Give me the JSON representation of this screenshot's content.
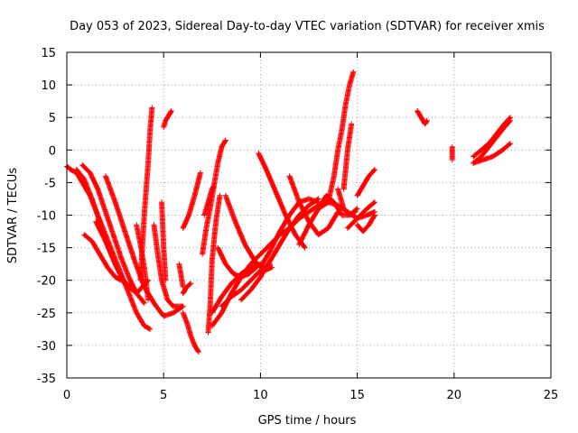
{
  "chart_data": {
    "type": "scatter",
    "title": "Day 053 of 2023, Sidereal Day-to-day VTEC variation (SDTVAR) for receiver xmis",
    "xlabel": "GPS time / hours",
    "ylabel": "SDTVAR / TECUs",
    "xlim": [
      0,
      25
    ],
    "ylim": [
      -35,
      15
    ],
    "xticks": [
      "0",
      "5",
      "10",
      "15",
      "20",
      "25"
    ],
    "yticks": [
      "15",
      "10",
      "5",
      "0",
      "-5",
      "-10",
      "-15",
      "-20",
      "-25",
      "-30",
      "-35"
    ],
    "grid": true,
    "marker": "+",
    "colors": {
      "points": "#ff0000",
      "grid": "#a0a0a0",
      "axis": "#000000"
    },
    "series": [
      {
        "x": [
          0.0,
          0.2,
          0.5,
          0.8,
          1.2,
          1.6,
          2.0,
          2.4,
          2.8,
          3.2,
          3.6,
          4.0,
          4.3
        ],
        "y": [
          -2.5,
          -3.0,
          -3.5,
          -5.0,
          -7.0,
          -10.0,
          -13.0,
          -16.0,
          -19.0,
          -22.0,
          -25.0,
          -27.0,
          -27.5
        ]
      },
      {
        "x": [
          0.5,
          0.9,
          1.3,
          1.7,
          2.1,
          2.5,
          2.9,
          3.3
        ],
        "y": [
          -3.0,
          -4.5,
          -7.5,
          -11.0,
          -14.5,
          -17.5,
          -20.0,
          -21.0
        ]
      },
      {
        "x": [
          0.8,
          1.2,
          1.6,
          2.0,
          2.4,
          2.8,
          3.2,
          3.6,
          4.0
        ],
        "y": [
          -2.3,
          -3.5,
          -6.0,
          -9.5,
          -13.0,
          -16.5,
          -19.5,
          -22.0,
          -23.5
        ]
      },
      {
        "x": [
          0.9,
          1.3,
          1.7,
          2.1,
          2.5,
          2.8
        ],
        "y": [
          -13.0,
          -14.0,
          -16.0,
          -18.0,
          -19.5,
          -20.0
        ]
      },
      {
        "x": [
          2.0,
          2.5,
          3.0,
          3.5,
          4.0,
          4.5,
          5.0,
          5.5,
          6.0
        ],
        "y": [
          -4.0,
          -8.0,
          -12.5,
          -17.0,
          -21.0,
          -23.5,
          -25.5,
          -25.0,
          -24.0
        ]
      },
      {
        "x": [
          1.5,
          2.0,
          2.5,
          3.0,
          3.6,
          4.2
        ],
        "y": [
          -11.0,
          -14.0,
          -17.5,
          -20.5,
          -22.0,
          -20.0
        ]
      },
      {
        "x": [
          3.8,
          4.0,
          4.2,
          4.3,
          4.4
        ],
        "y": [
          -20.0,
          -10.0,
          -2.0,
          3.0,
          6.5
        ]
      },
      {
        "x": [
          3.6,
          3.8,
          4.0,
          4.2
        ],
        "y": [
          -11.5,
          -14.5,
          -18.0,
          -23.0
        ]
      },
      {
        "x": [
          4.5,
          4.7,
          4.9,
          5.2,
          5.5,
          6.0
        ],
        "y": [
          -11.5,
          -16.0,
          -20.0,
          -23.0,
          -24.0,
          -24.0
        ]
      },
      {
        "x": [
          4.9,
          5.0,
          5.1
        ],
        "y": [
          -8.0,
          -15.0,
          -20.0
        ]
      },
      {
        "x": [
          5.0,
          5.1,
          5.3,
          5.4
        ],
        "y": [
          3.5,
          4.5,
          5.5,
          6.0
        ]
      },
      {
        "x": [
          6.0,
          6.2,
          6.4,
          6.6,
          6.8
        ],
        "y": [
          -25.0,
          -26.5,
          -28.5,
          -30.0,
          -31.0
        ]
      },
      {
        "x": [
          6.0,
          6.2,
          6.4
        ],
        "y": [
          -22.0,
          -21.0,
          -20.5
        ]
      },
      {
        "x": [
          6.0,
          6.3,
          6.6,
          6.9
        ],
        "y": [
          -12.0,
          -10.0,
          -7.0,
          -3.5
        ]
      },
      {
        "x": [
          5.8,
          6.0
        ],
        "y": [
          -17.5,
          -21.0
        ]
      },
      {
        "x": [
          7.0,
          7.2,
          7.4,
          7.6,
          7.8,
          8.0,
          8.2
        ],
        "y": [
          -16.0,
          -12.0,
          -9.0,
          -5.5,
          -2.0,
          0.5,
          1.5
        ]
      },
      {
        "x": [
          7.3,
          7.4,
          7.5,
          7.7,
          7.9
        ],
        "y": [
          -28.0,
          -24.0,
          -17.0,
          -11.0,
          -7.0
        ]
      },
      {
        "x": [
          7.1,
          7.3,
          7.5,
          7.6
        ],
        "y": [
          -10.0,
          -8.0,
          -6.0,
          -5.5
        ]
      },
      {
        "x": [
          7.5,
          8.0,
          8.5,
          9.0,
          9.5,
          10.0
        ],
        "y": [
          -25.0,
          -22.5,
          -20.5,
          -19.0,
          -18.0,
          -17.5
        ]
      },
      {
        "x": [
          7.8,
          8.2,
          8.6,
          9.0,
          9.4,
          9.8
        ],
        "y": [
          -15.0,
          -17.5,
          -19.0,
          -19.5,
          -19.0,
          -18.0
        ]
      },
      {
        "x": [
          8.2,
          8.7,
          9.2,
          9.7,
          10.2,
          10.6
        ],
        "y": [
          -7.0,
          -11.0,
          -14.5,
          -17.0,
          -18.5,
          -18.0
        ]
      },
      {
        "x": [
          8.0,
          8.5,
          9.0,
          9.5,
          10.0,
          10.5
        ],
        "y": [
          -24.0,
          -22.5,
          -21.5,
          -20.0,
          -18.5,
          -17.5
        ]
      },
      {
        "x": [
          7.5,
          8.0,
          8.5,
          9.0,
          9.5,
          10.0,
          10.5,
          11.0,
          11.5,
          12.0,
          12.5,
          13.0,
          13.5
        ],
        "y": [
          -27.0,
          -25.0,
          -22.0,
          -19.5,
          -17.5,
          -16.0,
          -14.5,
          -13.0,
          -12.0,
          -10.5,
          -9.5,
          -8.5,
          -8.0
        ]
      },
      {
        "x": [
          9.0,
          9.5,
          10.0,
          10.5,
          11.0,
          11.5,
          12.0,
          12.5,
          13.0
        ],
        "y": [
          -23.0,
          -21.5,
          -19.5,
          -17.0,
          -14.5,
          -12.0,
          -10.0,
          -8.5,
          -7.5
        ]
      },
      {
        "x": [
          9.9,
          10.3,
          10.8,
          11.3,
          11.8,
          12.3
        ],
        "y": [
          -0.5,
          -3.0,
          -6.5,
          -10.0,
          -13.0,
          -15.0
        ]
      },
      {
        "x": [
          10.0,
          10.5,
          11.0,
          11.5,
          12.0,
          12.5,
          13.0
        ],
        "y": [
          -18.0,
          -15.5,
          -12.5,
          -10.0,
          -8.0,
          -7.5,
          -8.0
        ]
      },
      {
        "x": [
          11.5,
          12.0,
          12.5,
          13.0,
          13.5,
          14.0
        ],
        "y": [
          -4.0,
          -8.0,
          -11.0,
          -13.0,
          -12.0,
          -9.5
        ]
      },
      {
        "x": [
          12.0,
          12.5,
          13.0,
          13.5,
          14.0,
          14.5,
          15.0,
          15.5,
          15.9
        ],
        "y": [
          -14.5,
          -11.5,
          -9.0,
          -8.0,
          -8.5,
          -9.5,
          -10.5,
          -10.0,
          -9.5
        ]
      },
      {
        "x": [
          13.0,
          13.4,
          13.8,
          14.2,
          14.6,
          15.0
        ],
        "y": [
          -9.0,
          -7.0,
          -8.0,
          -10.0,
          -10.0,
          -9.0
        ]
      },
      {
        "x": [
          13.5,
          13.8,
          14.0,
          14.2,
          14.4,
          14.6,
          14.8
        ],
        "y": [
          -8.0,
          -4.0,
          0.0,
          3.0,
          7.0,
          10.0,
          12.0
        ]
      },
      {
        "x": [
          14.0,
          14.3,
          14.6,
          14.9
        ],
        "y": [
          -6.0,
          -9.0,
          -10.0,
          -9.5
        ]
      },
      {
        "x": [
          14.3,
          14.5,
          14.7
        ],
        "y": [
          -6.0,
          0.0,
          4.0
        ]
      },
      {
        "x": [
          15.0,
          15.3,
          15.6,
          15.9
        ],
        "y": [
          -11.5,
          -12.5,
          -11.5,
          -10.0
        ]
      },
      {
        "x": [
          15.0,
          15.3,
          15.6,
          15.9
        ],
        "y": [
          -7.0,
          -5.5,
          -4.0,
          -3.0
        ]
      },
      {
        "x": [
          14.5,
          15.0,
          15.5,
          15.9
        ],
        "y": [
          -12.0,
          -10.5,
          -9.0,
          -8.0
        ]
      },
      {
        "x": [
          18.1,
          18.3,
          18.5,
          18.6
        ],
        "y": [
          6.0,
          5.0,
          4.0,
          4.5
        ]
      },
      {
        "x": [
          19.9,
          19.9,
          19.9
        ],
        "y": [
          -1.5,
          0.0,
          0.5
        ]
      },
      {
        "x": [
          21.0,
          21.4,
          21.8,
          22.2,
          22.6,
          22.9
        ],
        "y": [
          -2.0,
          -1.0,
          0.5,
          2.0,
          3.5,
          4.5
        ]
      },
      {
        "x": [
          21.0,
          21.4,
          21.8,
          22.2,
          22.6,
          22.9
        ],
        "y": [
          -1.0,
          0.0,
          1.0,
          2.5,
          4.0,
          5.0
        ]
      },
      {
        "x": [
          21.0,
          21.5,
          22.0,
          22.5,
          22.9
        ],
        "y": [
          -2.0,
          -1.5,
          -1.0,
          0.0,
          1.0
        ]
      }
    ]
  }
}
